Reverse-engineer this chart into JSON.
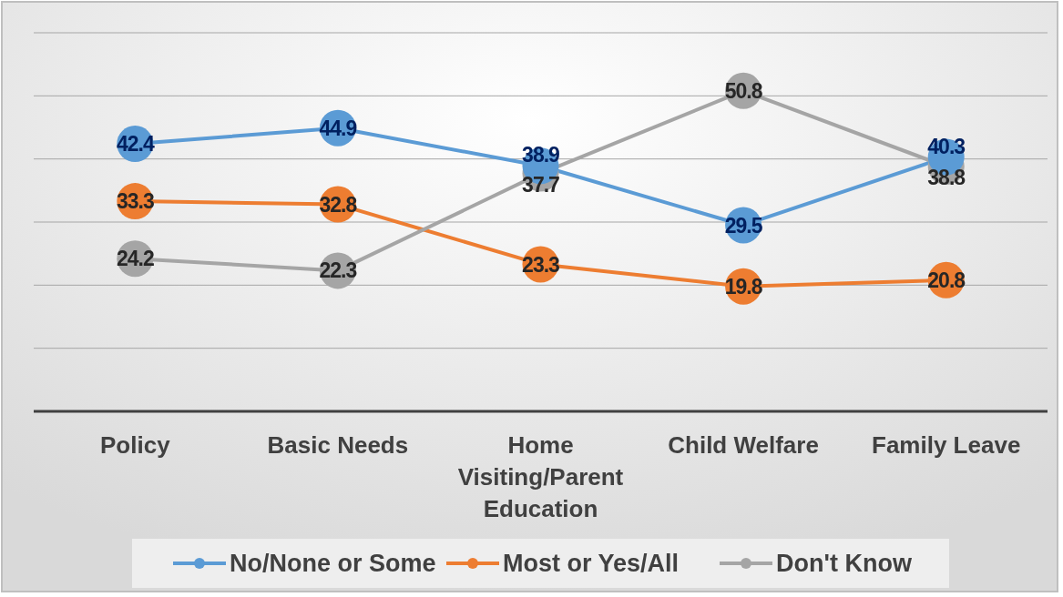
{
  "chart_data": {
    "type": "line",
    "categories": [
      "Policy",
      "Basic Needs",
      "Home Visiting/Parent Education",
      "Child Welfare",
      "Family Leave"
    ],
    "series": [
      {
        "name": "No/None or Some",
        "color": "#5b9bd5",
        "values": [
          42.4,
          44.9,
          38.9,
          29.5,
          40.3
        ]
      },
      {
        "name": "Most or Yes/All",
        "color": "#ed7d31",
        "values": [
          33.3,
          32.8,
          23.3,
          19.8,
          20.8
        ]
      },
      {
        "name": "Don't Know",
        "color": "#a5a5a5",
        "values": [
          24.2,
          22.3,
          37.7,
          50.8,
          38.8
        ]
      }
    ],
    "ylim": [
      0,
      60
    ],
    "yticks": [
      {
        "value": 0,
        "label": null
      },
      {
        "value": 10,
        "label": null
      },
      {
        "value": 20,
        "label": null
      },
      {
        "value": 30,
        "label": null
      },
      {
        "value": 40,
        "label": null
      },
      {
        "value": 50,
        "label": null
      },
      {
        "value": 60,
        "label": null
      }
    ],
    "tick_labels": "x",
    "grid": "y",
    "legend": "bottom",
    "marker": "circle",
    "line_style": "solid",
    "data_labels": true
  }
}
